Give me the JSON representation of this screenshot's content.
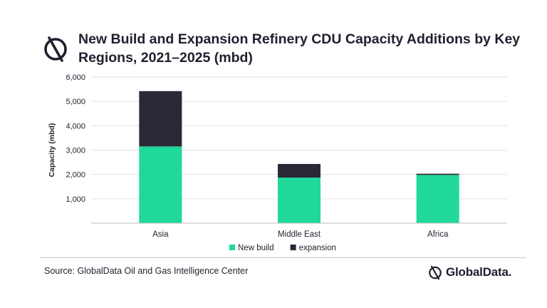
{
  "header": {
    "title": "New Build and Expansion Refinery CDU Capacity Additions by Key Regions, 2021–2025 (mbd)",
    "logo_icon": "globaldata-logo-icon"
  },
  "footer": {
    "source": "Source: GlobalData Oil and Gas Intelligence Center",
    "brand": "GlobalData."
  },
  "colors": {
    "new_build": "#1fd89a",
    "expansion": "#2b2838",
    "text": "#1f1f2e",
    "grid": "#e2e2e2"
  },
  "chart_data": {
    "type": "bar",
    "stacked": true,
    "title": "New Build and Expansion Refinery CDU Capacity Additions by Key Regions, 2021–2025 (mbd)",
    "xlabel": "",
    "ylabel": "Capacity (mbd)",
    "ylim": [
      0,
      6000
    ],
    "yticks": [
      1000,
      2000,
      3000,
      4000,
      5000,
      6000
    ],
    "ytick_labels": [
      "1,000",
      "2,000",
      "3,000",
      "4,000",
      "5,000",
      "6,000"
    ],
    "grid": true,
    "legend": "bottom-center",
    "categories": [
      "Asia",
      "Middle East",
      "Africa"
    ],
    "series": [
      {
        "name": "New build",
        "values": [
          3150,
          1870,
          1980
        ],
        "color": "#1fd89a"
      },
      {
        "name": "expansion",
        "values": [
          2270,
          560,
          50
        ],
        "color": "#2b2838"
      }
    ]
  }
}
